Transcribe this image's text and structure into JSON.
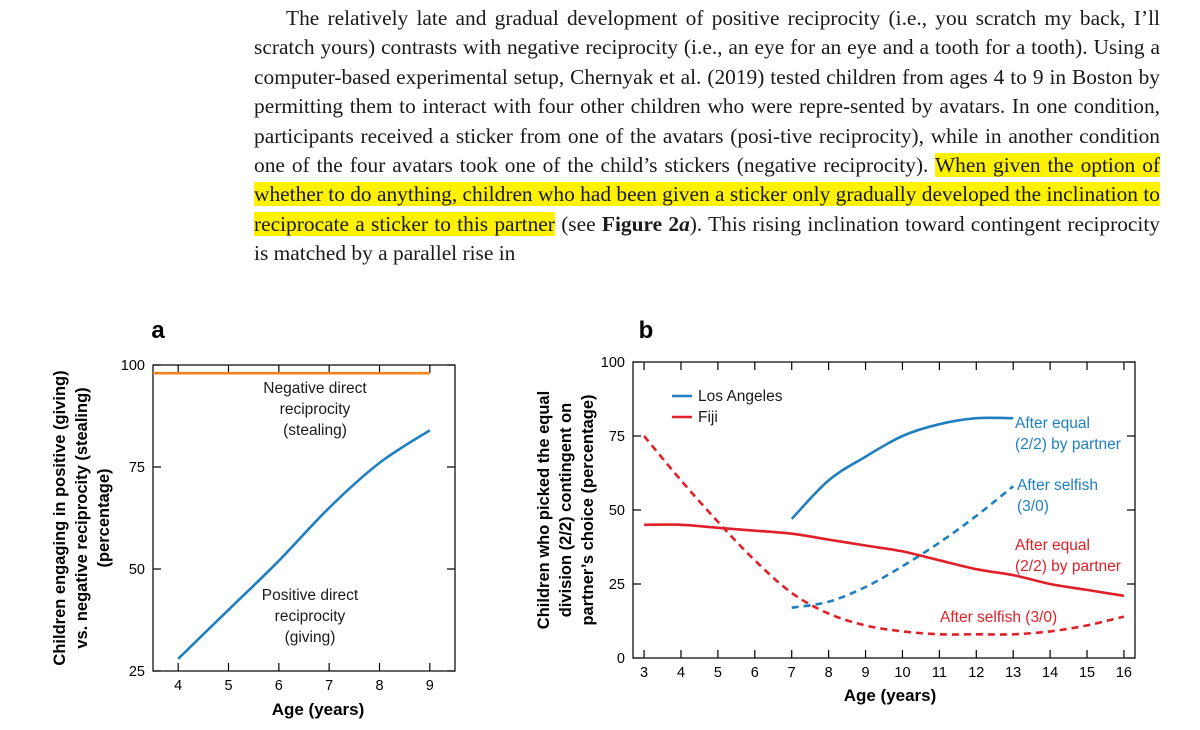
{
  "paragraph": {
    "before": "The relatively late and gradual development of positive reciprocity (i.e., you scratch my back, I’ll scratch yours) contrasts with negative reciprocity (i.e., an eye for an eye and a tooth for a tooth). Using a computer-based experimental setup, Chernyak et al. (2019) tested children from ages 4 to 9 in Boston by permitting them to interact with four other children who were repre-sented by avatars. In one condition, participants received a sticker from one of the avatars (posi-tive reciprocity), while in another condition one of the four avatars took one of the child’s stickers (negative reciprocity).",
    "highlighted": "When given the option of whether to do anything, children who had been given a sticker only gradually developed the inclination to reciprocate a sticker to this partner",
    "after_1": "(see",
    "fig_ref": "Figure 2",
    "fig_ref_italic": "a",
    "after_2": "). This rising inclination toward contingent reciprocity is matched by a parallel rise in"
  },
  "colors": {
    "blue": "#1f7fc0",
    "red": "#e02028",
    "orange": "#f0821e",
    "axis": "#000000"
  },
  "chart_data": [
    {
      "panel": "a",
      "type": "line",
      "xlabel": "Age (years)",
      "ylabel_lines": [
        "Children engaging in positive (giving)",
        "vs. negative reciprocity (stealing)",
        "(percentage)"
      ],
      "xlim": [
        3.5,
        9.5
      ],
      "ylim": [
        25,
        100
      ],
      "xticks": [
        4,
        5,
        6,
        7,
        8,
        9
      ],
      "yticks": [
        25,
        50,
        75,
        100
      ],
      "series": [
        {
          "color_key": "orange",
          "dashed": false,
          "label_lines": [
            "Negative direct",
            "reciprocity",
            "(stealing)"
          ],
          "x": [
            3.5,
            9
          ],
          "y": [
            98,
            98
          ]
        },
        {
          "color_key": "blue",
          "dashed": false,
          "label_lines": [
            "Positive direct",
            "reciprocity",
            "(giving)"
          ],
          "x": [
            4,
            5,
            6,
            7,
            8,
            9
          ],
          "y": [
            28,
            40,
            52,
            65,
            76,
            84
          ]
        }
      ]
    },
    {
      "panel": "b",
      "type": "line",
      "xlabel": "Age (years)",
      "ylabel_lines": [
        "Children who picked the equal",
        "division (2/2) contingent on",
        "partner’s choice (percentage)"
      ],
      "xlim": [
        2.7,
        16.3
      ],
      "ylim": [
        0,
        100
      ],
      "xticks": [
        3,
        4,
        5,
        6,
        7,
        8,
        9,
        10,
        11,
        12,
        13,
        14,
        15,
        16
      ],
      "yticks": [
        0,
        25,
        50,
        75,
        100
      ],
      "legend": {
        "placement": "top-left",
        "items": [
          {
            "name": "Los Angeles",
            "color_key": "blue"
          },
          {
            "name": "Fiji",
            "color_key": "red"
          }
        ]
      },
      "series": [
        {
          "color_key": "blue",
          "dashed": false,
          "label_lines": [
            "After equal",
            "(2/2) by partner"
          ],
          "x": [
            7,
            8,
            9,
            10,
            11,
            12,
            13
          ],
          "y": [
            47,
            60,
            68,
            75,
            79,
            81,
            81
          ]
        },
        {
          "color_key": "blue",
          "dashed": true,
          "label_lines": [
            "After selfish",
            "(3/0)"
          ],
          "x": [
            7,
            8,
            9,
            10,
            11,
            12,
            13
          ],
          "y": [
            17,
            19,
            24,
            31,
            39,
            48,
            58
          ]
        },
        {
          "color_key": "red",
          "dashed": false,
          "label_lines": [
            "After equal",
            "(2/2) by partner"
          ],
          "x": [
            3,
            4,
            5,
            6,
            7,
            8,
            9,
            10,
            11,
            12,
            13,
            14,
            15,
            16
          ],
          "y": [
            45,
            45,
            44,
            43,
            42,
            40,
            38,
            36,
            33,
            30,
            28,
            25,
            23,
            21
          ]
        },
        {
          "color_key": "red",
          "dashed": true,
          "label_lines": [
            "After selfish (3/0)"
          ],
          "x": [
            3,
            4,
            5,
            6,
            7,
            8,
            9,
            10,
            11,
            12,
            13,
            14,
            15,
            16
          ],
          "y": [
            75,
            60,
            46,
            33,
            22,
            15,
            11,
            9,
            8,
            8,
            8,
            9,
            11,
            14
          ]
        }
      ]
    }
  ]
}
